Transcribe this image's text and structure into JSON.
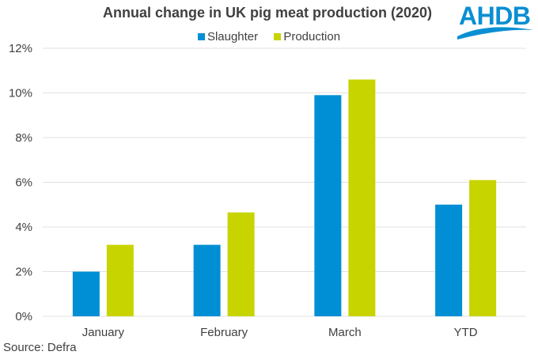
{
  "logo": {
    "text": "AHDB",
    "color": "#0a8fd2"
  },
  "source": "Source: Defra",
  "colors": {
    "slaughter": "#008fd4",
    "production": "#c8d400",
    "grid": "#e0e0e0",
    "text": "#404040"
  },
  "chart_data": {
    "type": "bar",
    "title": "Annual change in UK pig meat production (2020)",
    "xlabel": "",
    "ylabel": "",
    "categories": [
      "January",
      "February",
      "March",
      "YTD"
    ],
    "series": [
      {
        "name": "Slaughter",
        "values": [
          2.0,
          3.2,
          9.9,
          5.0
        ]
      },
      {
        "name": "Production",
        "values": [
          3.2,
          4.65,
          10.6,
          6.1
        ]
      }
    ],
    "ylim": [
      0,
      12
    ],
    "yticks": [
      0,
      2,
      4,
      6,
      8,
      10,
      12
    ],
    "ytick_labels": [
      "0%",
      "2%",
      "4%",
      "6%",
      "8%",
      "10%",
      "12%"
    ],
    "grid": true,
    "legend_position": "top-center"
  }
}
